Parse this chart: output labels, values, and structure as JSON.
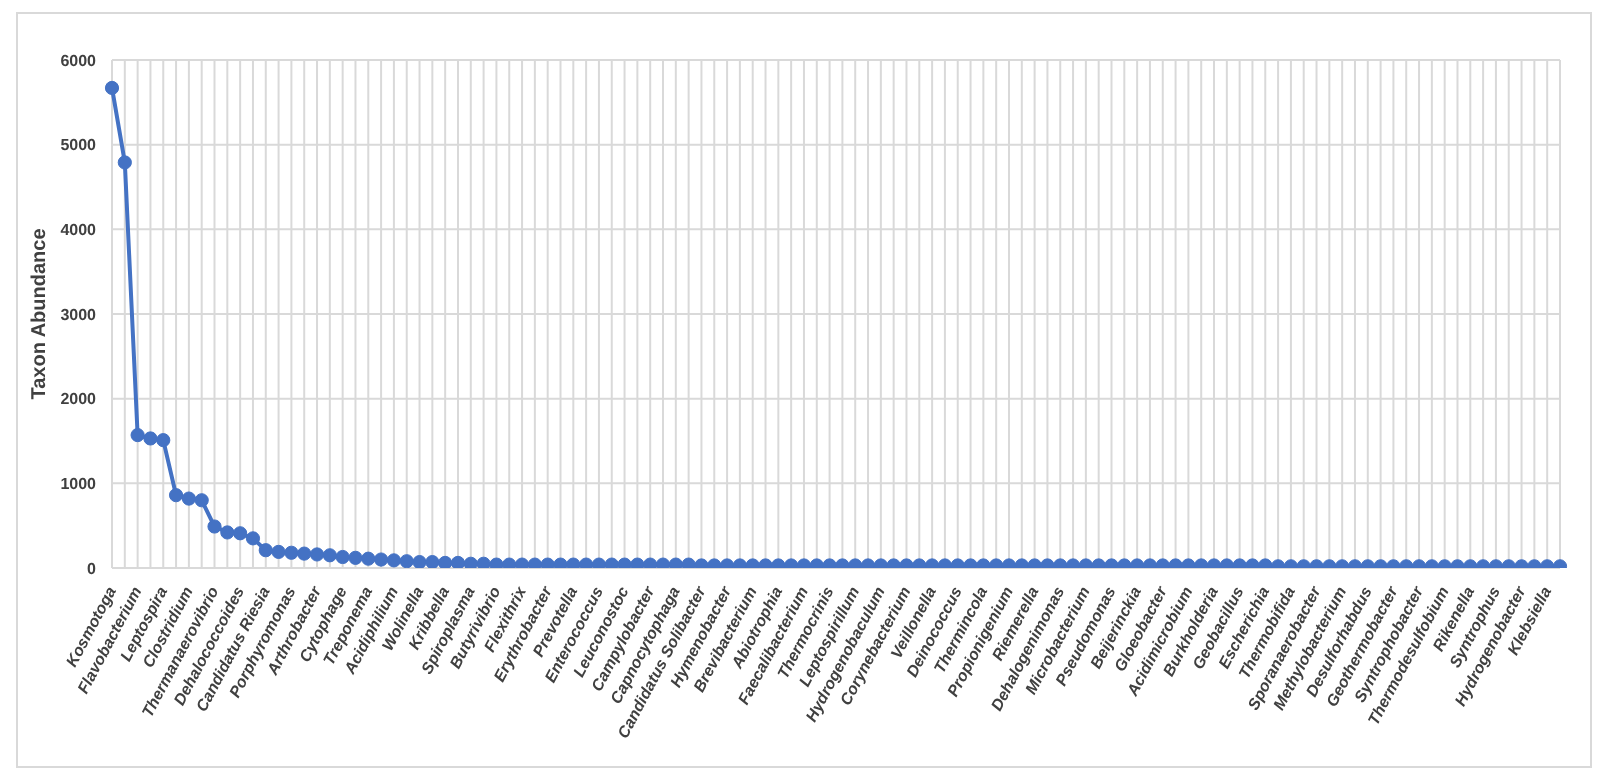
{
  "chart_data": {
    "type": "line",
    "ylabel": "Taxon Abundance",
    "categories": [
      "Kosmotoga",
      null,
      "Flavobacterium",
      null,
      "Leptospira",
      null,
      "Clostridium",
      null,
      "Thermanaerovibrio",
      null,
      "Dehalococcoides",
      null,
      "Candidatus Riesia",
      null,
      "Porphyromonas",
      null,
      "Arthrobacter",
      null,
      "Cytophage",
      null,
      "Treponema",
      null,
      "Acidiphilium",
      null,
      "Wolinella",
      null,
      "Kribbella",
      null,
      "Spiroplasma",
      null,
      "Butyrivibrio",
      null,
      "Flexithrix",
      null,
      "Erythrobacter",
      null,
      "Prevotella",
      null,
      "Enterococcus",
      null,
      "Leuconostoc",
      null,
      "Campylobacter",
      null,
      "Capnocytophaga",
      null,
      "Candidatus Solibacter",
      null,
      "Hymenobacter",
      null,
      "Brevibacterium",
      null,
      "Abiotrophia",
      null,
      "Faecalibacterium",
      null,
      "Thermocrinis",
      null,
      "Leptospirillum",
      null,
      "Hydrogenobaculum",
      null,
      "Corynebacterium",
      null,
      "Veillonella",
      null,
      "Deinococcus",
      null,
      "Thermincola",
      null,
      "Propionigenium",
      null,
      "Riemerella",
      null,
      "Dehalogenimonas",
      null,
      "Microbacterium",
      null,
      "Pseudomonas",
      null,
      "Beijerinckia",
      null,
      "Gloeobacter",
      null,
      "Acidimicrobium",
      null,
      "Burkholderia",
      null,
      "Geobacillus",
      null,
      "Escherichia",
      null,
      "Thermobifida",
      null,
      "Sporanaerobacter",
      null,
      "Methylobacterium",
      null,
      "Desulforhabdus",
      null,
      "Geothermobacter",
      null,
      "Syntrophobacter",
      null,
      "Thermodesulfobium",
      null,
      "Rikenella",
      null,
      "Syntrophus",
      null,
      "Hydrogenobacter",
      null,
      "Klebsiella",
      null
    ],
    "series": [
      {
        "color": "#4472c4",
        "values": [
          5670,
          4790,
          1570,
          1530,
          1510,
          860,
          820,
          800,
          490,
          420,
          410,
          350,
          210,
          190,
          180,
          170,
          160,
          150,
          130,
          120,
          110,
          100,
          90,
          80,
          70,
          70,
          60,
          60,
          50,
          50,
          40,
          40,
          40,
          40,
          40,
          40,
          40,
          40,
          40,
          40,
          40,
          40,
          40,
          40,
          40,
          40,
          30,
          30,
          30,
          30,
          30,
          30,
          30,
          30,
          30,
          30,
          30,
          30,
          30,
          30,
          30,
          30,
          30,
          30,
          30,
          30,
          30,
          30,
          30,
          30,
          30,
          30,
          30,
          30,
          30,
          30,
          30,
          30,
          30,
          30,
          30,
          30,
          30,
          30,
          30,
          30,
          30,
          30,
          30,
          30,
          30,
          20,
          20,
          20,
          20,
          20,
          20,
          20,
          20,
          20,
          20,
          20,
          20,
          20,
          20,
          20,
          20,
          20,
          20,
          20,
          20,
          20,
          20,
          20
        ]
      }
    ],
    "ylim": [
      0,
      6000
    ],
    "yticks": [
      0,
      1000,
      2000,
      3000,
      4000,
      5000,
      6000
    ],
    "grid": true,
    "legend": false,
    "marker": "circle",
    "line_style": "solid"
  }
}
